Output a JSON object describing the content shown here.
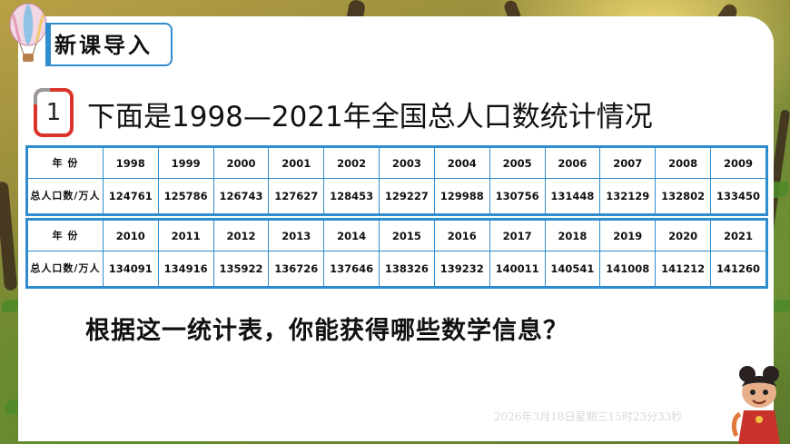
{
  "section_title": "新课导入",
  "problem_number": "1",
  "heading": "下面是1998—2021年全国总人口数统计情况",
  "table": {
    "row_label_year": "年 份",
    "row_label_population": "总人口数/万人",
    "part1": {
      "years": [
        "1998",
        "1999",
        "2000",
        "2001",
        "2002",
        "2003",
        "2004",
        "2005",
        "2006",
        "2007",
        "2008",
        "2009"
      ],
      "population": [
        "124761",
        "125786",
        "126743",
        "127627",
        "128453",
        "129227",
        "129988",
        "130756",
        "131448",
        "132129",
        "132802",
        "133450"
      ]
    },
    "part2": {
      "years": [
        "2010",
        "2011",
        "2012",
        "2013",
        "2014",
        "2015",
        "2016",
        "2017",
        "2018",
        "2019",
        "2020",
        "2021"
      ],
      "population": [
        "134091",
        "134916",
        "135922",
        "136726",
        "137646",
        "138326",
        "139232",
        "140011",
        "140541",
        "141008",
        "141212",
        "141260"
      ]
    }
  },
  "question": "根据这一统计表，你能获得哪些数学信息？",
  "timestamp": "2026年3月18日星期三15时23分33秒",
  "colors": {
    "accent_blue": "#2f8ccf",
    "badge_red": "#d9342b"
  }
}
